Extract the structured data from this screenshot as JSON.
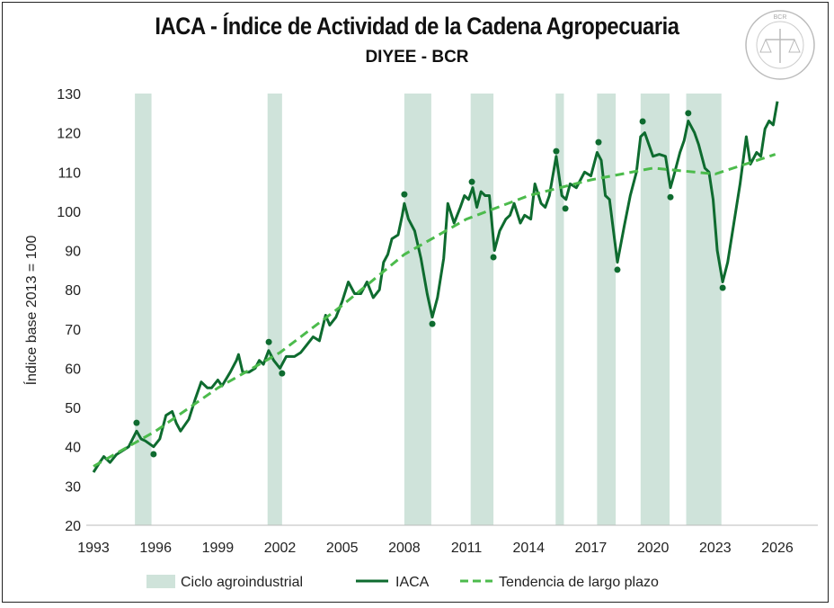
{
  "chart_data": {
    "type": "line",
    "title": "IACA - Índice de Actividad de la Cadena Agropecuaria",
    "subtitle": "DIYEE - BCR",
    "ylabel": "Índice base 2013 = 100",
    "xlabel": "",
    "xlim": [
      1993,
      2026
    ],
    "ylim": [
      20,
      130
    ],
    "x_ticks": [
      "1993",
      "1996",
      "1999",
      "2002",
      "2005",
      "2008",
      "2011",
      "2014",
      "2017",
      "2020",
      "2023",
      "2026"
    ],
    "y_ticks": [
      "20",
      "30",
      "40",
      "50",
      "60",
      "70",
      "80",
      "90",
      "100",
      "110",
      "120",
      "130"
    ],
    "grid": false,
    "legend": "bottom",
    "colors": {
      "cycle": "#cfe3da",
      "iaca": "#0e6b2f",
      "trend": "#4cbb4c",
      "markers": "#0e6b2f"
    },
    "cycles_label": "Ciclo agroindustrial",
    "cycles": [
      [
        1995.0,
        1995.8
      ],
      [
        2001.4,
        2002.1
      ],
      [
        2008.0,
        2009.3
      ],
      [
        2011.2,
        2012.3
      ],
      [
        2015.3,
        2015.7
      ],
      [
        2017.3,
        2018.2
      ],
      [
        2019.4,
        2020.8
      ],
      [
        2021.6,
        2023.3
      ]
    ],
    "series": [
      {
        "name": "IACA",
        "style": "solid",
        "points": [
          [
            1993.0,
            33.5
          ],
          [
            1993.3,
            36
          ],
          [
            1993.5,
            37.5
          ],
          [
            1993.8,
            36
          ],
          [
            1994.1,
            38
          ],
          [
            1994.4,
            39
          ],
          [
            1994.7,
            40
          ],
          [
            1995.08,
            44
          ],
          [
            1995.3,
            42
          ],
          [
            1995.5,
            41.5
          ],
          [
            1995.9,
            40
          ],
          [
            1996.2,
            42
          ],
          [
            1996.5,
            48
          ],
          [
            1996.8,
            49
          ],
          [
            1997.0,
            46
          ],
          [
            1997.2,
            44
          ],
          [
            1997.6,
            47
          ],
          [
            1997.9,
            52
          ],
          [
            1998.2,
            56.5
          ],
          [
            1998.5,
            55
          ],
          [
            1998.7,
            55
          ],
          [
            1999.0,
            57
          ],
          [
            1999.2,
            55.5
          ],
          [
            1999.6,
            59
          ],
          [
            1999.9,
            62
          ],
          [
            2000.0,
            63.5
          ],
          [
            2000.2,
            59
          ],
          [
            2000.5,
            59
          ],
          [
            2000.8,
            60
          ],
          [
            2001.0,
            62
          ],
          [
            2001.2,
            61
          ],
          [
            2001.45,
            64.5
          ],
          [
            2001.7,
            62
          ],
          [
            2002.0,
            60
          ],
          [
            2002.3,
            63
          ],
          [
            2002.7,
            63
          ],
          [
            2003.0,
            64
          ],
          [
            2003.3,
            66
          ],
          [
            2003.6,
            68
          ],
          [
            2003.9,
            67
          ],
          [
            2004.2,
            73.5
          ],
          [
            2004.4,
            71
          ],
          [
            2004.7,
            73
          ],
          [
            2005.0,
            77
          ],
          [
            2005.3,
            82
          ],
          [
            2005.6,
            79
          ],
          [
            2005.9,
            79
          ],
          [
            2006.2,
            82
          ],
          [
            2006.5,
            78
          ],
          [
            2006.8,
            80
          ],
          [
            2007.0,
            87
          ],
          [
            2007.2,
            89
          ],
          [
            2007.4,
            93
          ],
          [
            2007.7,
            94
          ],
          [
            2007.9,
            99
          ],
          [
            2008.0,
            102
          ],
          [
            2008.2,
            98
          ],
          [
            2008.5,
            95
          ],
          [
            2008.8,
            88
          ],
          [
            2009.1,
            79
          ],
          [
            2009.35,
            73
          ],
          [
            2009.6,
            78
          ],
          [
            2009.9,
            88
          ],
          [
            2010.1,
            102
          ],
          [
            2010.4,
            97
          ],
          [
            2010.7,
            101
          ],
          [
            2010.9,
            104
          ],
          [
            2011.1,
            103
          ],
          [
            2011.3,
            106
          ],
          [
            2011.5,
            101
          ],
          [
            2011.7,
            105
          ],
          [
            2011.9,
            104
          ],
          [
            2012.1,
            104
          ],
          [
            2012.35,
            90
          ],
          [
            2012.6,
            95
          ],
          [
            2012.9,
            98
          ],
          [
            2013.1,
            99
          ],
          [
            2013.3,
            102
          ],
          [
            2013.6,
            97
          ],
          [
            2013.8,
            99
          ],
          [
            2014.1,
            98
          ],
          [
            2014.3,
            107
          ],
          [
            2014.6,
            102
          ],
          [
            2014.8,
            101
          ],
          [
            2015.0,
            104
          ],
          [
            2015.33,
            114
          ],
          [
            2015.6,
            104
          ],
          [
            2015.8,
            103
          ],
          [
            2016.0,
            107
          ],
          [
            2016.3,
            106
          ],
          [
            2016.5,
            108
          ],
          [
            2016.7,
            110
          ],
          [
            2017.0,
            109
          ],
          [
            2017.3,
            115
          ],
          [
            2017.5,
            113
          ],
          [
            2017.7,
            104
          ],
          [
            2017.9,
            103
          ],
          [
            2018.28,
            87
          ],
          [
            2018.6,
            96
          ],
          [
            2018.9,
            104
          ],
          [
            2019.2,
            110
          ],
          [
            2019.4,
            119
          ],
          [
            2019.6,
            120
          ],
          [
            2019.8,
            117
          ],
          [
            2020.0,
            114
          ],
          [
            2020.3,
            114.5
          ],
          [
            2020.6,
            114
          ],
          [
            2020.84,
            106
          ],
          [
            2021.0,
            109
          ],
          [
            2021.3,
            115
          ],
          [
            2021.5,
            118
          ],
          [
            2021.7,
            123
          ],
          [
            2022.0,
            120
          ],
          [
            2022.2,
            117
          ],
          [
            2022.5,
            111
          ],
          [
            2022.7,
            110
          ],
          [
            2022.9,
            103
          ],
          [
            2023.1,
            90
          ],
          [
            2023.36,
            82
          ],
          [
            2023.6,
            87
          ],
          [
            2023.9,
            97
          ],
          [
            2024.2,
            107
          ],
          [
            2024.5,
            119
          ],
          [
            2024.7,
            112
          ],
          [
            2025.0,
            115
          ],
          [
            2025.2,
            114
          ],
          [
            2025.4,
            121
          ],
          [
            2025.6,
            123
          ],
          [
            2025.8,
            122
          ],
          [
            2026.0,
            128
          ]
        ]
      },
      {
        "name": "Tendencia de largo plazo",
        "style": "dashed",
        "points": [
          [
            1993,
            35
          ],
          [
            1996,
            44
          ],
          [
            1999,
            55
          ],
          [
            2002,
            64
          ],
          [
            2005,
            76
          ],
          [
            2008,
            89
          ],
          [
            2011,
            98
          ],
          [
            2014,
            104
          ],
          [
            2017,
            108
          ],
          [
            2020,
            111
          ],
          [
            2023,
            109.5
          ],
          [
            2025.9,
            114.5
          ]
        ]
      }
    ],
    "turning_points": [
      [
        1995.08,
        46.1
      ],
      [
        1995.9,
        38.1
      ],
      [
        2001.46,
        66.7
      ],
      [
        2002.1,
        58.7
      ],
      [
        2008.0,
        104.3
      ],
      [
        2009.35,
        71.3
      ],
      [
        2011.26,
        107.5
      ],
      [
        2012.3,
        88.3
      ],
      [
        2015.33,
        115.3
      ],
      [
        2015.77,
        100.7
      ],
      [
        2017.37,
        117.6
      ],
      [
        2018.28,
        85.1
      ],
      [
        2019.5,
        122.9
      ],
      [
        2020.84,
        103.6
      ],
      [
        2021.7,
        125
      ],
      [
        2023.36,
        80.5
      ]
    ]
  },
  "logo": {
    "text": "BOLSA DE COMERCIO DE ROSARIO"
  }
}
